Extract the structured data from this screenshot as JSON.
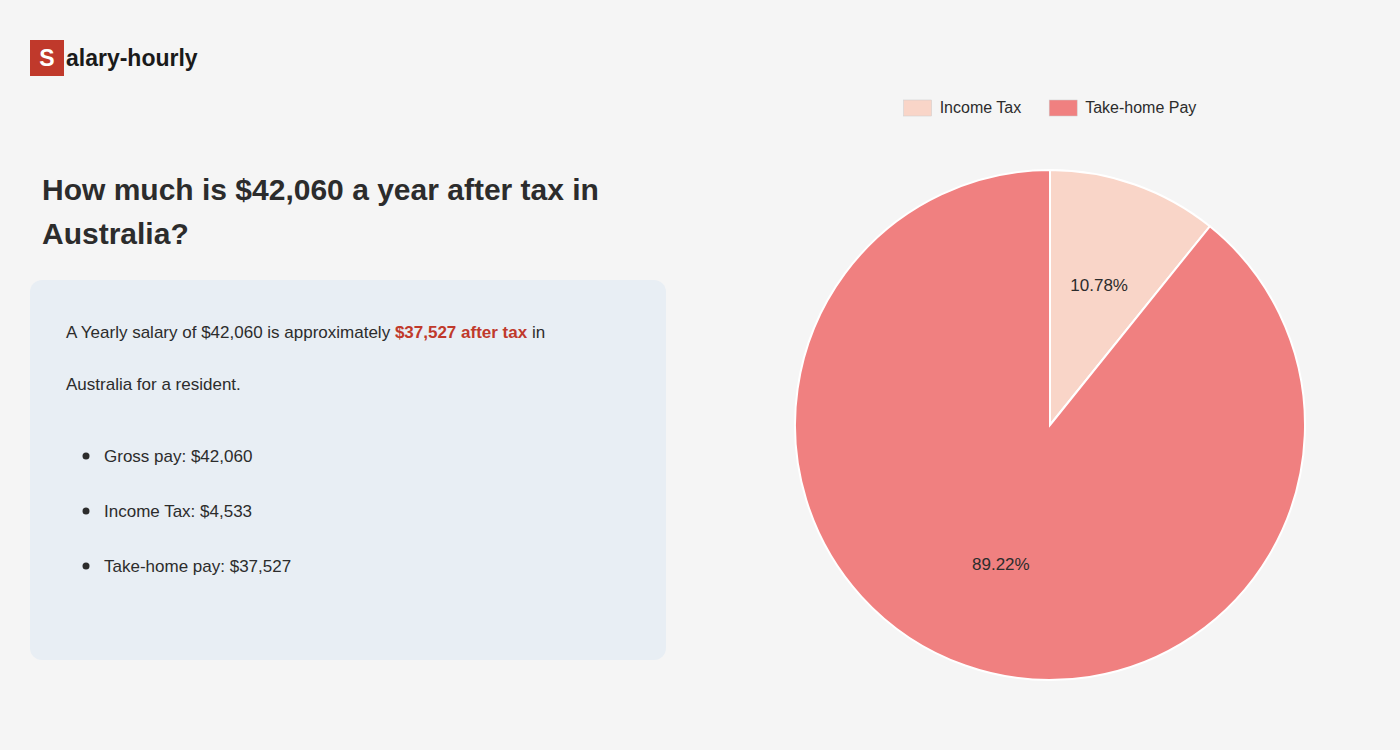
{
  "chart_data": {
    "type": "pie",
    "title": "How much is $42,060 a year after tax in\nAustralia?",
    "categories": [
      "Income Tax",
      "Take-home Pay"
    ],
    "values": [
      10.78,
      89.22
    ],
    "value_labels": [
      "10.78%",
      "89.22%"
    ],
    "colors": [
      "#f9d5c8",
      "#f08080"
    ],
    "data_labels": true,
    "legend": "top",
    "annotations": [
      {
        "text": "S",
        "color": "#c0392b"
      },
      {
        "text": "alary-hourly"
      },
      {
        "text": "A Yearly salary of $42,060 is approximately "
      },
      {
        "text": "$37,527 after tax",
        "color": "#c0392b"
      },
      {
        "text": " in"
      },
      {
        "text": "Australia for a resident."
      },
      {
        "text": "Gross pay: $42,060"
      },
      {
        "text": "Income Tax: $4,533"
      },
      {
        "text": "Take-home pay: $37,527"
      }
    ]
  }
}
